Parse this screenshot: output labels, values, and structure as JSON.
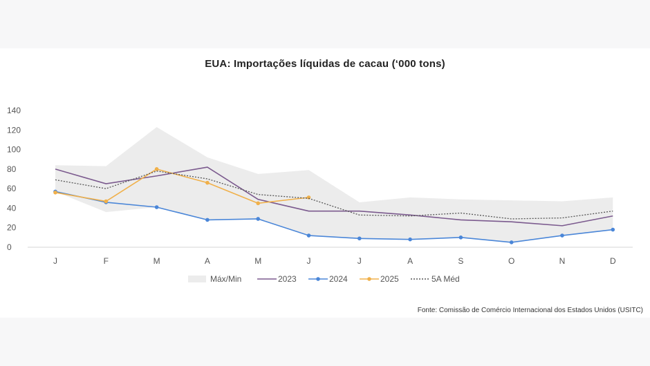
{
  "chart_data": {
    "type": "line",
    "title": "EUA: Importações líquidas de cacau (‘000 tons)",
    "xlabel": "",
    "ylabel": "",
    "categories": [
      "J",
      "F",
      "M",
      "A",
      "M",
      "J",
      "J",
      "A",
      "S",
      "O",
      "N",
      "D"
    ],
    "ylim": [
      0,
      140
    ],
    "yticks": [
      0,
      20,
      40,
      60,
      80,
      100,
      120,
      140
    ],
    "grid": false,
    "legend_position": "bottom",
    "band": {
      "name": "Máx/Min",
      "color": "#ececec",
      "max": [
        84,
        83,
        123,
        92,
        75,
        79,
        46,
        51,
        49,
        48,
        47,
        51
      ],
      "min": [
        57,
        36,
        41,
        28,
        29,
        12,
        9,
        8,
        10,
        5,
        12,
        18
      ]
    },
    "series": [
      {
        "name": "2023",
        "color": "#7b5a8e",
        "style": "solid",
        "marker": false,
        "values": [
          80,
          65,
          73,
          82,
          49,
          37,
          37,
          33,
          28,
          26,
          22,
          32
        ]
      },
      {
        "name": "2024",
        "color": "#4a86d8",
        "style": "solid",
        "marker": true,
        "values": [
          57,
          46,
          41,
          28,
          29,
          12,
          9,
          8,
          10,
          5,
          12,
          18
        ]
      },
      {
        "name": "2025",
        "color": "#f0b04a",
        "style": "solid",
        "marker": true,
        "values": [
          56,
          47,
          80,
          66,
          45,
          51,
          null,
          null,
          null,
          null,
          null,
          null
        ]
      },
      {
        "name": "5A Méd",
        "color": "#555555",
        "style": "dotted",
        "marker": false,
        "values": [
          69,
          60,
          78,
          70,
          54,
          50,
          33,
          32,
          35,
          29,
          30,
          37
        ]
      }
    ]
  },
  "source": "Fonte: Comissão de Comércio Internacional dos Estados Unidos (USITC)"
}
